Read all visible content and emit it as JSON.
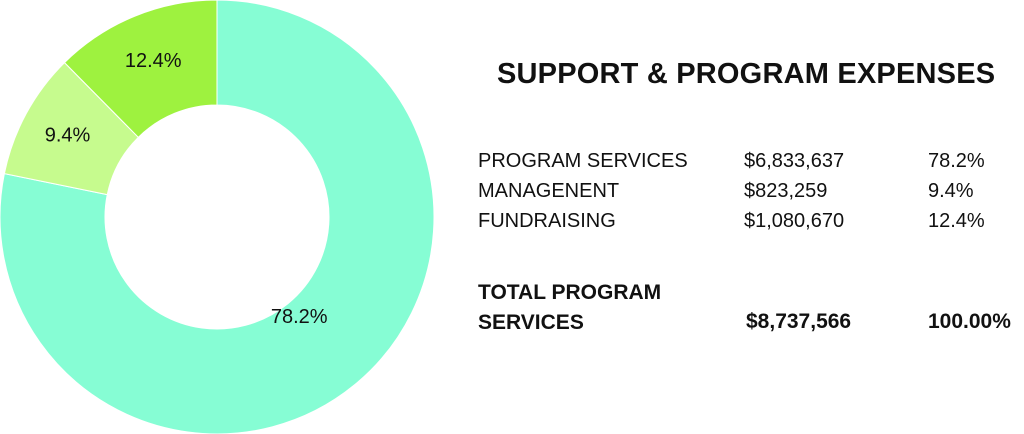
{
  "chart_data": {
    "type": "pie",
    "variant": "donut",
    "title": "SUPPORT & PROGRAM EXPENSES",
    "slices": [
      {
        "name": "PROGRAM SERVICES",
        "value": 78.2,
        "label": "78.2%",
        "color": "#86fdd4"
      },
      {
        "name": "MANAGENENT",
        "value": 9.4,
        "label": "9.4%",
        "color": "#c6fb8e"
      },
      {
        "name": "FUNDRAISING",
        "value": 12.4,
        "label": "12.4%",
        "color": "#9ef23f"
      }
    ]
  },
  "table": {
    "rows": [
      {
        "name": "PROGRAM SERVICES",
        "amount": "$6,833,637",
        "percent": "78.2%"
      },
      {
        "name": "MANAGENENT",
        "amount": "$823,259",
        "percent": "9.4%"
      },
      {
        "name": "FUNDRAISING",
        "amount": "$1,080,670",
        "percent": "12.4%"
      }
    ],
    "total": {
      "name": "TOTAL PROGRAM SERVICES",
      "amount": "$8,737,566",
      "percent": "100.00%"
    }
  }
}
